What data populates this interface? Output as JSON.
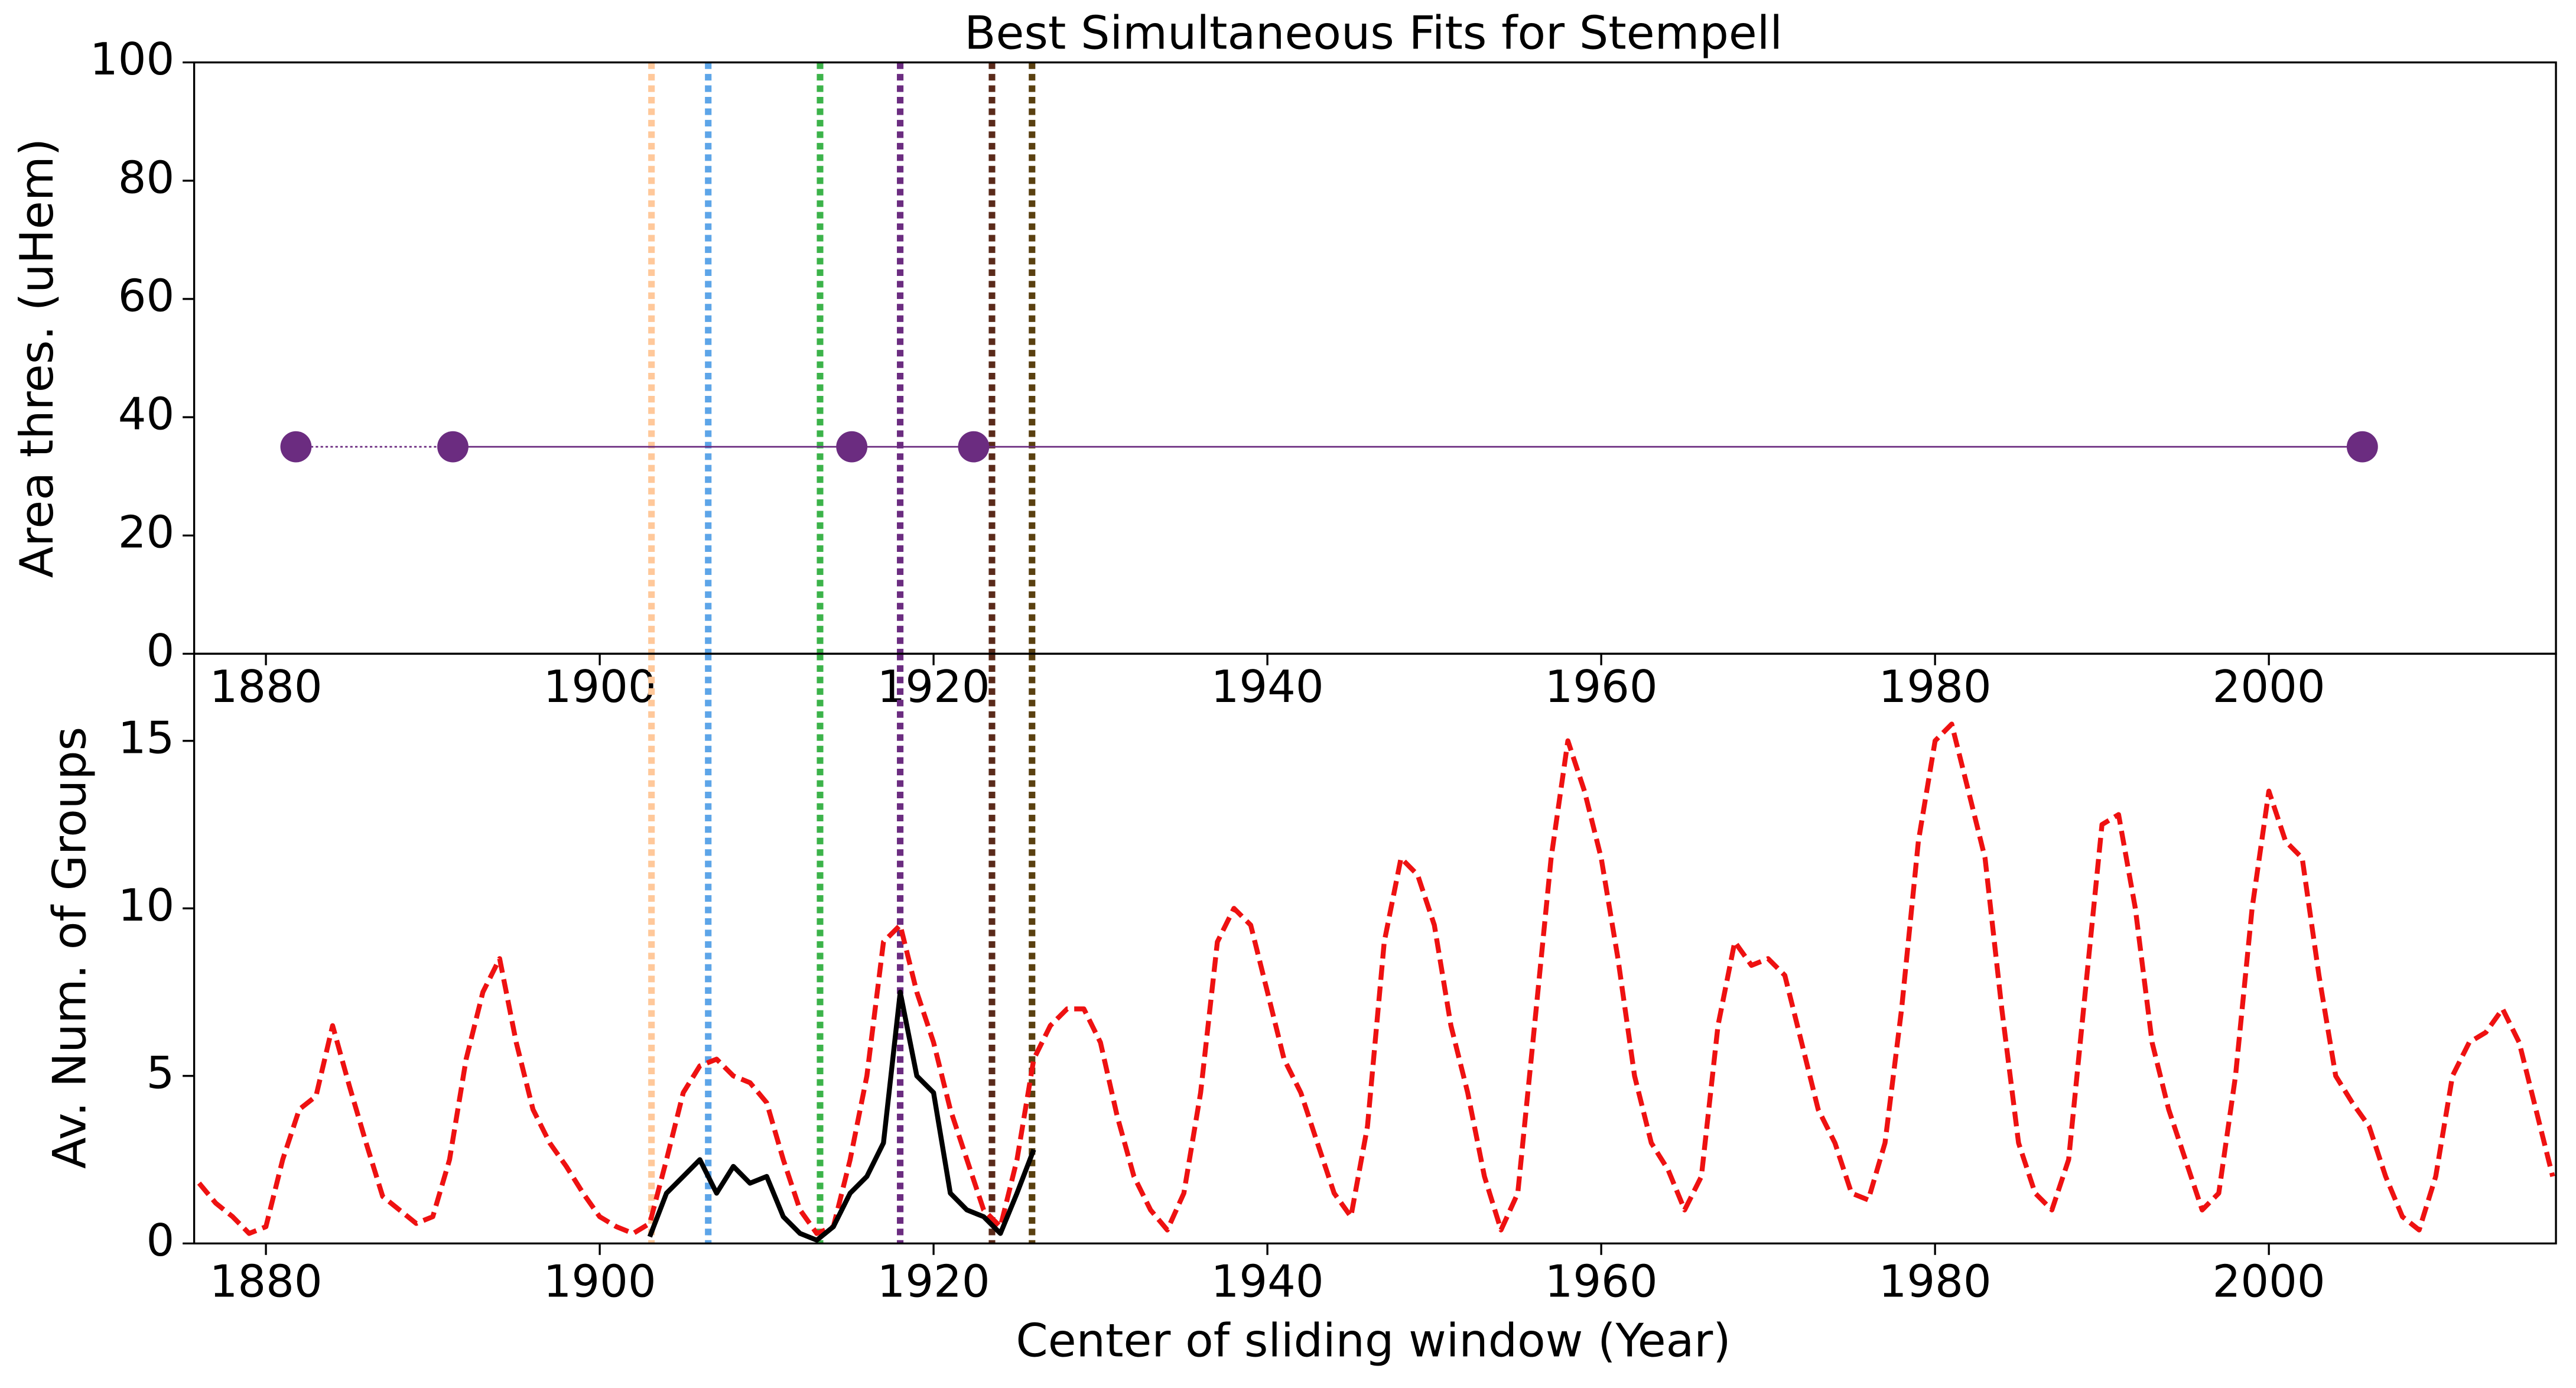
{
  "chart_data": [
    {
      "type": "scatter",
      "title": "Best Simultaneous Fits for Stempell",
      "ylabel": "Area thres. (uHem)",
      "xlim": [
        1875.7,
        2017.2
      ],
      "ylim": [
        0,
        100
      ],
      "xticks": [
        1880,
        1900,
        1920,
        1940,
        1960,
        1980,
        2000
      ],
      "yticks": [
        0,
        20,
        40,
        60,
        80,
        100
      ],
      "series": [
        {
          "color": "#6b2c80",
          "x": [
            1881.8,
            1891.2,
            1915.1,
            1922.4,
            2005.6
          ],
          "values": [
            35,
            35,
            35,
            35,
            35
          ]
        }
      ],
      "vlines": [
        {
          "x": 1903.1,
          "color": "#ffc89a"
        },
        {
          "x": 1906.5,
          "color": "#5da5e8"
        },
        {
          "x": 1913.2,
          "color": "#3cb34a"
        },
        {
          "x": 1918.0,
          "color": "#6b2c80"
        },
        {
          "x": 1923.5,
          "color": "#5a2a1a"
        },
        {
          "x": 1925.9,
          "color": "#5a4010"
        }
      ]
    },
    {
      "type": "line",
      "ylabel": "Av. Num. of Groups",
      "xlabel": "Center of sliding window (Year)",
      "xlim": [
        1875.7,
        2017.2
      ],
      "ylim": [
        0,
        17.6
      ],
      "xticks": [
        1880,
        1900,
        1920,
        1940,
        1960,
        1980,
        2000
      ],
      "yticks": [
        0,
        5,
        10,
        15
      ],
      "series": [
        {
          "color": "#ee1111",
          "dash": true,
          "x": [
            1876,
            1877,
            1878,
            1879,
            1880,
            1881,
            1882,
            1883,
            1884,
            1885,
            1886,
            1887,
            1888,
            1889,
            1890,
            1891,
            1892,
            1893,
            1894,
            1895,
            1896,
            1897,
            1898,
            1899,
            1900,
            1901,
            1902,
            1903,
            1904,
            1905,
            1906,
            1907,
            1908,
            1909,
            1910,
            1911,
            1912,
            1913,
            1914,
            1915,
            1916,
            1917,
            1918,
            1919,
            1920,
            1921,
            1922,
            1923,
            1924,
            1925,
            1926,
            1927,
            1928,
            1929,
            1930,
            1931,
            1932,
            1933,
            1934,
            1935,
            1936,
            1937,
            1938,
            1939,
            1940,
            1941,
            1942,
            1943,
            1944,
            1945,
            1946,
            1947,
            1948,
            1949,
            1950,
            1951,
            1952,
            1953,
            1954,
            1955,
            1956,
            1957,
            1958,
            1959,
            1960,
            1961,
            1962,
            1963,
            1964,
            1965,
            1966,
            1967,
            1968,
            1969,
            1970,
            1971,
            1972,
            1973,
            1974,
            1975,
            1976,
            1977,
            1978,
            1979,
            1980,
            1981,
            1982,
            1983,
            1984,
            1985,
            1986,
            1987,
            1988,
            1989,
            1990,
            1991,
            1992,
            1993,
            1994,
            1995,
            1996,
            1997,
            1998,
            1999,
            2000,
            2001,
            2002,
            2003,
            2004,
            2005,
            2006,
            2007,
            2008,
            2009,
            2010,
            2011,
            2012,
            2013,
            2014,
            2015,
            2016,
            2017
          ],
          "values": [
            1.8,
            1.2,
            0.8,
            0.3,
            0.5,
            2.5,
            4.0,
            4.4,
            6.5,
            4.7,
            3.0,
            1.4,
            1.0,
            0.6,
            0.8,
            2.5,
            5.5,
            7.5,
            8.5,
            6.0,
            4.0,
            3.0,
            2.3,
            1.5,
            0.8,
            0.5,
            0.3,
            0.6,
            2.5,
            4.5,
            5.3,
            5.5,
            5.0,
            4.8,
            4.2,
            2.5,
            1.0,
            0.3,
            0.5,
            2.5,
            5.0,
            9.0,
            9.5,
            7.5,
            6.0,
            4.0,
            2.5,
            1.0,
            0.5,
            2.5,
            5.5,
            6.5,
            7.0,
            7.0,
            6.0,
            3.8,
            2.0,
            1.0,
            0.4,
            1.5,
            4.5,
            9.0,
            10.0,
            9.5,
            7.5,
            5.5,
            4.5,
            3.0,
            1.5,
            0.8,
            3.5,
            9.0,
            11.5,
            11.0,
            9.5,
            6.5,
            4.5,
            2.0,
            0.4,
            1.5,
            6.5,
            11.5,
            15.0,
            13.5,
            11.5,
            8.5,
            5.0,
            3.0,
            2.2,
            1.0,
            2.0,
            6.5,
            9.0,
            8.3,
            8.5,
            8.0,
            6.0,
            4.0,
            3.0,
            1.5,
            1.3,
            3.0,
            7.0,
            12.0,
            15.0,
            15.5,
            13.5,
            11.5,
            7.0,
            3.0,
            1.5,
            1.0,
            2.5,
            7.5,
            12.5,
            12.8,
            10.0,
            6.0,
            4.0,
            2.5,
            1.0,
            1.5,
            5.0,
            10.0,
            13.5,
            12.0,
            11.5,
            8.0,
            5.0,
            4.2,
            3.5,
            2.0,
            0.8,
            0.4,
            2.0,
            5.0,
            6.0,
            6.3,
            7.0,
            6.0,
            4.0,
            2.0
          ]
        },
        {
          "color": "#000000",
          "dash": false,
          "x": [
            1903,
            1904,
            1905,
            1906,
            1907,
            1908,
            1909,
            1910,
            1911,
            1912,
            1913,
            1914,
            1915,
            1916,
            1917,
            1918,
            1919,
            1920,
            1921,
            1922,
            1923,
            1924,
            1925,
            1926
          ],
          "values": [
            0.2,
            1.5,
            2.0,
            2.5,
            1.5,
            2.3,
            1.8,
            2.0,
            0.8,
            0.3,
            0.1,
            0.5,
            1.5,
            2.0,
            3.0,
            7.5,
            5.0,
            4.5,
            1.5,
            1.0,
            0.8,
            0.3,
            1.5,
            2.8
          ]
        }
      ]
    }
  ]
}
